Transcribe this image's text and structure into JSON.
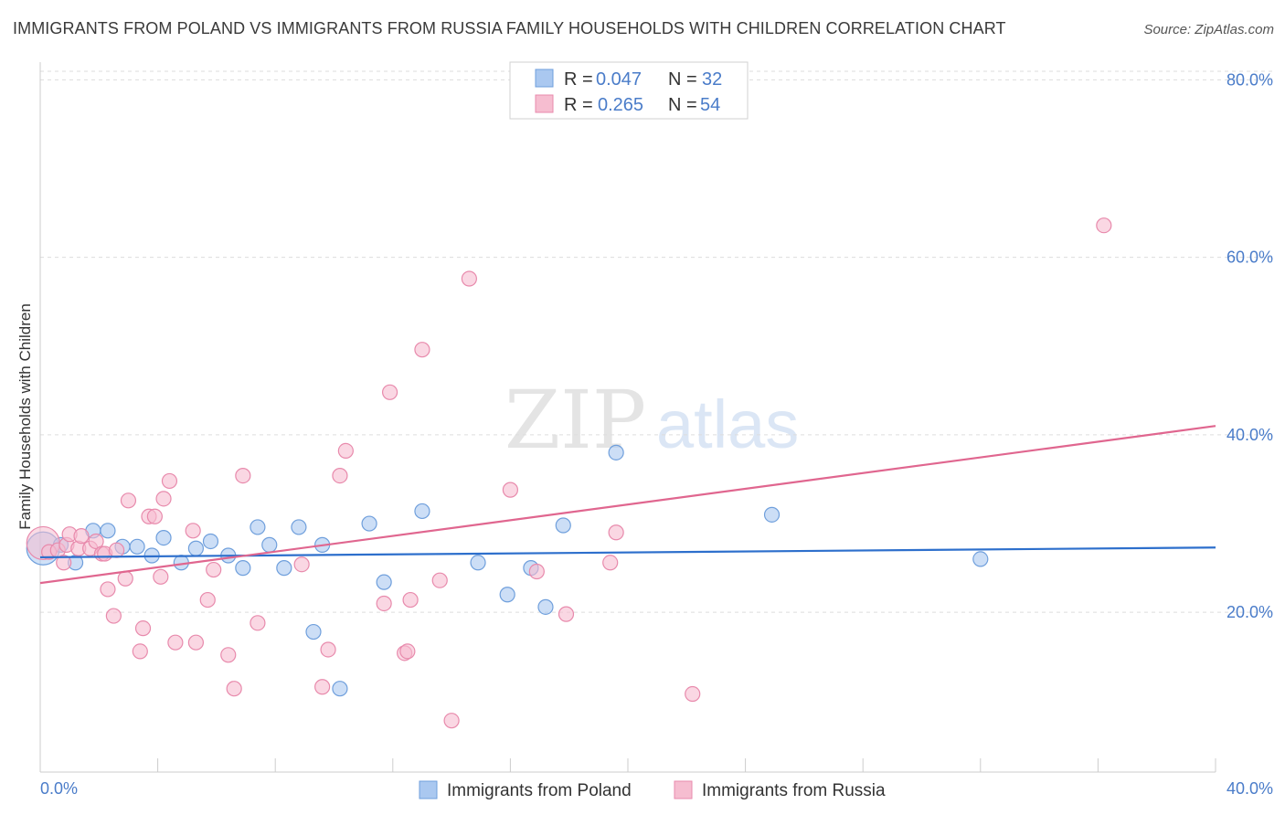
{
  "title": "IMMIGRANTS FROM POLAND VS IMMIGRANTS FROM RUSSIA FAMILY HOUSEHOLDS WITH CHILDREN CORRELATION CHART",
  "source": "Source: ZipAtlas.com",
  "watermark": {
    "zip": "ZIP",
    "atlas": "atlas"
  },
  "colors": {
    "poland_fill": "#aac8f0",
    "poland_stroke": "#6f9fdc",
    "poland_line": "#2d6fcc",
    "russia_fill": "#f6bdd0",
    "russia_stroke": "#e88aac",
    "russia_line": "#e0668f",
    "axis_text": "#4a7cc9",
    "grid": "#dddddd"
  },
  "legend": {
    "poland": {
      "r_label": "R =",
      "r_value": "0.047",
      "n_label": "N =",
      "n_value": "32"
    },
    "russia": {
      "r_label": "R =",
      "r_value": "0.265",
      "n_label": "N =",
      "n_value": "54"
    }
  },
  "chart_data": {
    "type": "scatter",
    "title": "IMMIGRANTS FROM POLAND VS IMMIGRANTS FROM RUSSIA FAMILY HOUSEHOLDS WITH CHILDREN CORRELATION CHART",
    "xlabel": "",
    "ylabel": "Family Households with Children",
    "xlim": [
      0,
      40
    ],
    "ylim": [
      2,
      82
    ],
    "x_tick_labels": [
      "0.0%",
      "40.0%"
    ],
    "y_ticks": [
      20,
      40,
      60,
      80
    ],
    "y_tick_labels": [
      "20.0%",
      "40.0%",
      "60.0%",
      "80.0%"
    ],
    "grid": true,
    "series": [
      {
        "name": "Immigrants from Poland",
        "color": "#aac8f0",
        "r": 0.047,
        "n": 32,
        "trend": {
          "x": [
            0,
            40
          ],
          "y": [
            26.2,
            27.3
          ]
        },
        "points": [
          {
            "x": 0.1,
            "y": 27.2,
            "big": true
          },
          {
            "x": 0.7,
            "y": 27.6
          },
          {
            "x": 1.2,
            "y": 25.6
          },
          {
            "x": 1.8,
            "y": 29.2
          },
          {
            "x": 2.3,
            "y": 29.2
          },
          {
            "x": 2.8,
            "y": 27.4
          },
          {
            "x": 3.3,
            "y": 27.4
          },
          {
            "x": 3.8,
            "y": 26.4
          },
          {
            "x": 4.2,
            "y": 28.4
          },
          {
            "x": 4.8,
            "y": 25.6
          },
          {
            "x": 5.3,
            "y": 27.2
          },
          {
            "x": 5.8,
            "y": 28.0
          },
          {
            "x": 6.4,
            "y": 26.4
          },
          {
            "x": 6.9,
            "y": 25.0
          },
          {
            "x": 7.4,
            "y": 29.6
          },
          {
            "x": 7.8,
            "y": 27.6
          },
          {
            "x": 8.3,
            "y": 25.0
          },
          {
            "x": 8.8,
            "y": 29.6
          },
          {
            "x": 9.3,
            "y": 17.8
          },
          {
            "x": 9.6,
            "y": 27.6
          },
          {
            "x": 10.2,
            "y": 11.4
          },
          {
            "x": 11.2,
            "y": 30.0
          },
          {
            "x": 11.7,
            "y": 23.4
          },
          {
            "x": 13.0,
            "y": 31.4
          },
          {
            "x": 14.9,
            "y": 25.6
          },
          {
            "x": 15.9,
            "y": 22.0
          },
          {
            "x": 16.7,
            "y": 25.0
          },
          {
            "x": 17.2,
            "y": 20.6
          },
          {
            "x": 17.8,
            "y": 29.8
          },
          {
            "x": 19.6,
            "y": 38.0
          },
          {
            "x": 24.9,
            "y": 31.0
          },
          {
            "x": 32.0,
            "y": 26.0
          }
        ]
      },
      {
        "name": "Immigrants from Russia",
        "color": "#f6bdd0",
        "r": 0.265,
        "n": 54,
        "trend": {
          "x": [
            0,
            40
          ],
          "y": [
            23.3,
            41.0
          ]
        },
        "points": [
          {
            "x": 0.1,
            "y": 27.8,
            "big": true
          },
          {
            "x": 0.3,
            "y": 26.8
          },
          {
            "x": 0.6,
            "y": 27.0
          },
          {
            "x": 0.8,
            "y": 25.6
          },
          {
            "x": 0.9,
            "y": 27.6
          },
          {
            "x": 1.0,
            "y": 28.8
          },
          {
            "x": 1.3,
            "y": 27.2
          },
          {
            "x": 1.4,
            "y": 28.6
          },
          {
            "x": 1.7,
            "y": 27.2
          },
          {
            "x": 1.9,
            "y": 28.0
          },
          {
            "x": 2.1,
            "y": 26.6
          },
          {
            "x": 2.2,
            "y": 26.6
          },
          {
            "x": 2.3,
            "y": 22.6
          },
          {
            "x": 2.5,
            "y": 19.6
          },
          {
            "x": 2.6,
            "y": 27.0
          },
          {
            "x": 2.9,
            "y": 23.8
          },
          {
            "x": 3.0,
            "y": 32.6
          },
          {
            "x": 3.4,
            "y": 15.6
          },
          {
            "x": 3.5,
            "y": 18.2
          },
          {
            "x": 3.7,
            "y": 30.8
          },
          {
            "x": 3.9,
            "y": 30.8
          },
          {
            "x": 4.1,
            "y": 24.0
          },
          {
            "x": 4.2,
            "y": 32.8
          },
          {
            "x": 4.4,
            "y": 34.8
          },
          {
            "x": 4.6,
            "y": 16.6
          },
          {
            "x": 5.2,
            "y": 29.2
          },
          {
            "x": 5.3,
            "y": 16.6
          },
          {
            "x": 5.7,
            "y": 21.4
          },
          {
            "x": 5.9,
            "y": 24.8
          },
          {
            "x": 6.4,
            "y": 15.2
          },
          {
            "x": 6.6,
            "y": 11.4
          },
          {
            "x": 6.9,
            "y": 35.4
          },
          {
            "x": 7.4,
            "y": 18.8
          },
          {
            "x": 8.9,
            "y": 25.4
          },
          {
            "x": 9.6,
            "y": 11.6
          },
          {
            "x": 9.8,
            "y": 15.8
          },
          {
            "x": 10.2,
            "y": 35.4
          },
          {
            "x": 10.4,
            "y": 38.2
          },
          {
            "x": 11.7,
            "y": 21.0
          },
          {
            "x": 11.9,
            "y": 44.8
          },
          {
            "x": 12.4,
            "y": 15.4
          },
          {
            "x": 12.5,
            "y": 15.6
          },
          {
            "x": 12.6,
            "y": 21.4
          },
          {
            "x": 13.0,
            "y": 49.6
          },
          {
            "x": 13.6,
            "y": 23.6
          },
          {
            "x": 14.0,
            "y": 7.8
          },
          {
            "x": 14.6,
            "y": 57.6
          },
          {
            "x": 16.0,
            "y": 33.8
          },
          {
            "x": 16.9,
            "y": 24.6
          },
          {
            "x": 17.9,
            "y": 19.8
          },
          {
            "x": 19.4,
            "y": 25.6
          },
          {
            "x": 19.6,
            "y": 29.0
          },
          {
            "x": 22.2,
            "y": 10.8
          },
          {
            "x": 36.2,
            "y": 63.6
          }
        ]
      }
    ]
  }
}
